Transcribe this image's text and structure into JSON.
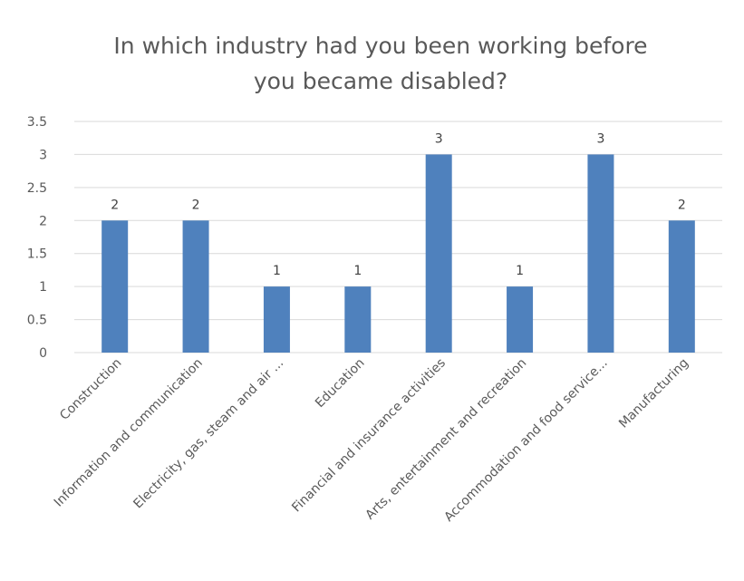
{
  "chart_data": {
    "type": "bar",
    "title": "In which industry had you been working before you became disabled?",
    "title_lines": [
      "In which industry had you been working before",
      "you became disabled?"
    ],
    "categories": [
      "Construction",
      "Information and communication",
      "Electricity, gas, steam and air ...",
      "Education",
      "Financial and insurance activities",
      "Arts, entertainment and recreation",
      "Accommodation and food service...",
      "Manufacturing"
    ],
    "values": [
      2,
      2,
      1,
      1,
      3,
      1,
      3,
      2
    ],
    "data_labels": [
      "2",
      "2",
      "1",
      "1",
      "3",
      "1",
      "3",
      "2"
    ],
    "y_ticks": [
      "0",
      "0.5",
      "1",
      "1.5",
      "2",
      "2.5",
      "3",
      "3.5"
    ],
    "ylim": [
      0,
      3.5
    ],
    "grid": true,
    "legend": "none",
    "bar_color": "#4f81bd"
  }
}
